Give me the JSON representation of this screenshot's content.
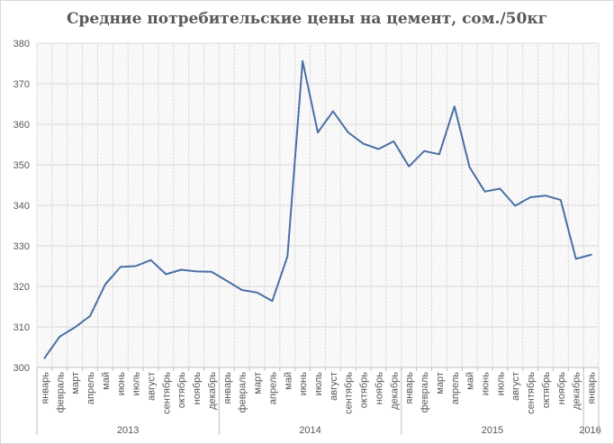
{
  "title": "Средние потребительские цены на цемент, сом./50кг",
  "chart_data": {
    "type": "line",
    "title": "Средние потребительские цены на цемент, сом./50кг",
    "xlabel": "",
    "ylabel": "",
    "ylim": [
      300,
      380
    ],
    "yticks": [
      300,
      310,
      320,
      330,
      340,
      350,
      360,
      370,
      380
    ],
    "grid": true,
    "categories": [
      "январь",
      "февраль",
      "март",
      "апрель",
      "май",
      "июнь",
      "июль",
      "август",
      "сентябрь",
      "октябрь",
      "ноябрь",
      "декабрь",
      "январь",
      "февраль",
      "март",
      "апрель",
      "май",
      "июнь",
      "июль",
      "август",
      "сентябрь",
      "октябрь",
      "ноябрь",
      "декабрь",
      "январь",
      "февраль",
      "март",
      "апрель",
      "май",
      "июнь",
      "июль",
      "август",
      "сентябрь",
      "октябрь",
      "ноябрь",
      "декабрь",
      "январь"
    ],
    "years": [
      {
        "label": "2013",
        "count": 12
      },
      {
        "label": "2014",
        "count": 12
      },
      {
        "label": "2015",
        "count": 12
      },
      {
        "label": "2016",
        "count": 1
      }
    ],
    "series": [
      {
        "color": "#4a6fa5",
        "values": [
          302.3,
          307.6,
          309.9,
          312.7,
          320.5,
          324.8,
          325.0,
          326.5,
          323.0,
          324.1,
          323.7,
          323.6,
          321.4,
          319.1,
          318.5,
          316.4,
          327.4,
          375.6,
          358.0,
          363.2,
          358.0,
          355.2,
          353.9,
          355.8,
          349.6,
          353.4,
          352.6,
          364.4,
          349.4,
          343.4,
          344.1,
          339.9,
          342.0,
          342.4,
          341.3,
          326.8,
          327.8
        ]
      }
    ]
  }
}
